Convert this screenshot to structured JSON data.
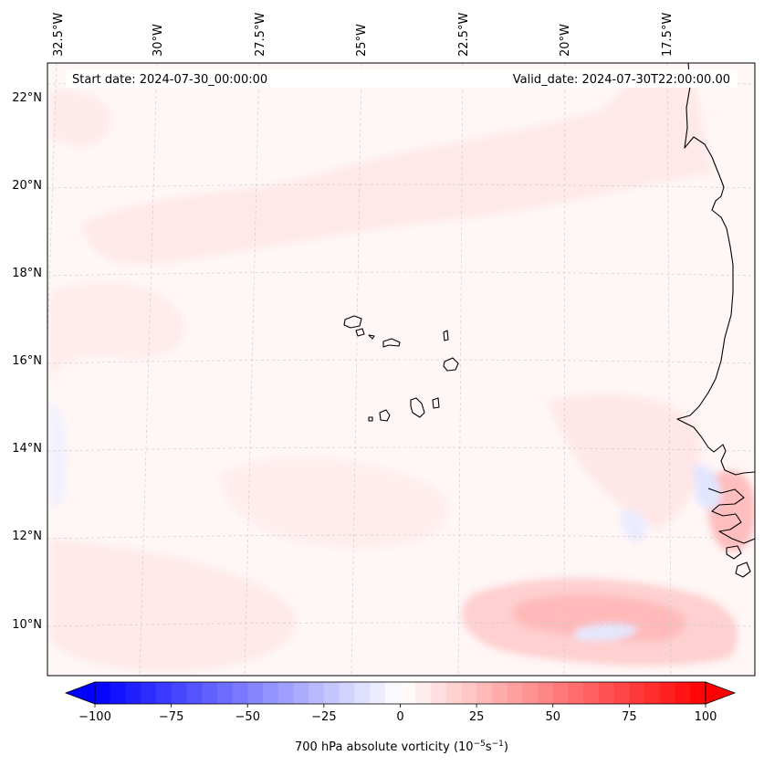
{
  "map": {
    "start_date_text": "Start date: 2024-07-30_00:00:00",
    "valid_date_text": "Valid_date: 2024-07-30T22:00:00.00",
    "lon_labels": [
      "32.5°W",
      "30°W",
      "27.5°W",
      "25°W",
      "22.5°W",
      "20°W",
      "17.5°W"
    ],
    "lat_labels": [
      "22°N",
      "20°N",
      "18°N",
      "16°N",
      "14°N",
      "12°N",
      "10°N"
    ],
    "region": "Cape Verde islands and West African coast",
    "field": "700 hPa absolute vorticity"
  },
  "colorbar": {
    "ticks": [
      "−100",
      "−75",
      "−50",
      "−25",
      "0",
      "25",
      "50",
      "75",
      "100"
    ],
    "label_main": "700 hPa absolute vorticity (10",
    "label_sup1": "−5",
    "label_mid": "s",
    "label_sup2": "−1",
    "label_end": ")",
    "min": -100,
    "max": 100,
    "levels": 40,
    "colors": {
      "negative": "#0000ff",
      "zero": "#ffffff",
      "positive": "#ff0000"
    }
  }
}
